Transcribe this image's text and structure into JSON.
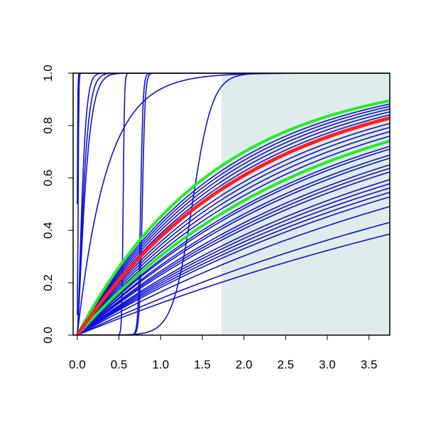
{
  "chart_data": {
    "type": "line",
    "title": "",
    "xlabel": "",
    "ylabel": "",
    "xlim": [
      -0.05,
      3.75
    ],
    "ylim": [
      0,
      1
    ],
    "x_ticks": [
      "0.0",
      "0.5",
      "1.0",
      "1.5",
      "2.0",
      "2.5",
      "3.0",
      "3.5"
    ],
    "y_ticks": [
      "0.0",
      "0.2",
      "0.4",
      "0.6",
      "0.8",
      "1.0"
    ],
    "grid": false,
    "legend": "none",
    "shaded_region": {
      "x_from": 1.73,
      "x_to": 3.75,
      "color": "#e0ecec"
    },
    "colors": {
      "curves": "#1010d8",
      "estimate": "#ff2020",
      "band": "#22ee22"
    },
    "steep_curves": [
      {
        "kind": "logistic",
        "center": 0.0,
        "scale": 0.003
      },
      {
        "kind": "logistic",
        "center": 0.01,
        "scale": 0.004
      },
      {
        "kind": "saturating",
        "rate": 14,
        "power": 1.4
      },
      {
        "kind": "saturating",
        "rate": 11,
        "power": 1.3
      },
      {
        "kind": "saturating",
        "rate": 9,
        "power": 1.25
      },
      {
        "kind": "saturating",
        "rate": 2.8,
        "power": 1.0
      },
      {
        "kind": "logistic",
        "center": 0.55,
        "scale": 0.008
      },
      {
        "kind": "logistic",
        "center": 0.76,
        "scale": 0.015
      },
      {
        "kind": "logistic",
        "center": 0.78,
        "scale": 0.017
      },
      {
        "kind": "logistic",
        "center": 1.38,
        "scale": 0.12
      }
    ],
    "rate_curves": [
      0.6,
      0.57,
      0.55,
      0.53,
      0.51,
      0.49,
      0.47,
      0.44,
      0.42,
      0.4,
      0.38,
      0.36,
      0.34,
      0.33,
      0.31,
      0.3,
      0.28,
      0.27,
      0.26,
      0.24,
      0.23,
      0.22,
      0.21,
      0.2,
      0.18,
      0.15,
      0.13
    ],
    "estimate": {
      "rate": 0.47
    },
    "band_upper": {
      "rate": 0.6
    },
    "band_lower": {
      "rate": 0.36
    }
  }
}
